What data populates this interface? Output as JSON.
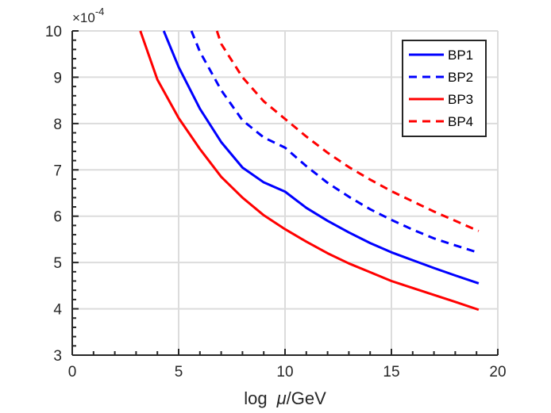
{
  "chart_data": {
    "type": "line",
    "title": "",
    "xlabel": "log  μ/GeV",
    "xlabel_parts": {
      "log": "log",
      "mu": "μ",
      "unit": "/GeV"
    },
    "ylabel": "",
    "xlim": [
      0,
      20
    ],
    "ylim": [
      3,
      10
    ],
    "xticks": [
      0,
      5,
      10,
      15,
      20
    ],
    "yticks": [
      3,
      4,
      5,
      6,
      7,
      8,
      9,
      10
    ],
    "xtick_labels": [
      "0",
      "5",
      "10",
      "15",
      "20"
    ],
    "ytick_labels": [
      "3",
      "4",
      "5",
      "6",
      "7",
      "8",
      "9",
      "10"
    ],
    "y_exponent": {
      "base": "×10",
      "power": "-4"
    },
    "grid": true,
    "legend_position": "top-right",
    "series": [
      {
        "name": "BP1",
        "color": "#0000ff",
        "dash": "solid",
        "x": [
          4.3,
          5,
          6,
          7,
          8,
          9,
          10,
          11,
          12,
          13,
          14,
          15,
          16,
          17,
          18,
          19.1
        ],
        "y": [
          10.0,
          9.22,
          8.32,
          7.6,
          7.05,
          6.73,
          6.53,
          6.18,
          5.9,
          5.65,
          5.42,
          5.22,
          5.05,
          4.88,
          4.72,
          4.55
        ]
      },
      {
        "name": "BP2",
        "color": "#0000ff",
        "dash": "dashed",
        "x": [
          5.6,
          6,
          7,
          8,
          9,
          10,
          11,
          12,
          13,
          14,
          15,
          16,
          17,
          18,
          19.1
        ],
        "y": [
          10.0,
          9.55,
          8.72,
          8.07,
          7.7,
          7.48,
          7.08,
          6.72,
          6.42,
          6.15,
          5.92,
          5.71,
          5.52,
          5.37,
          5.21
        ]
      },
      {
        "name": "BP3",
        "color": "#ff0000",
        "dash": "solid",
        "x": [
          3.2,
          4,
          5,
          6,
          7,
          8,
          9,
          10,
          11,
          12,
          13,
          14,
          15,
          16,
          17,
          18,
          19.1
        ],
        "y": [
          10.0,
          8.95,
          8.12,
          7.45,
          6.85,
          6.4,
          6.02,
          5.72,
          5.45,
          5.2,
          4.98,
          4.79,
          4.6,
          4.45,
          4.3,
          4.15,
          3.98
        ]
      },
      {
        "name": "BP4",
        "color": "#ff0000",
        "dash": "dashed",
        "x": [
          6.8,
          7,
          8,
          9,
          10,
          11,
          12,
          13,
          14,
          15,
          16,
          17,
          18,
          19.1
        ],
        "y": [
          10.0,
          9.72,
          9.0,
          8.48,
          8.1,
          7.72,
          7.37,
          7.06,
          6.79,
          6.54,
          6.32,
          6.1,
          5.9,
          5.68
        ]
      }
    ]
  }
}
